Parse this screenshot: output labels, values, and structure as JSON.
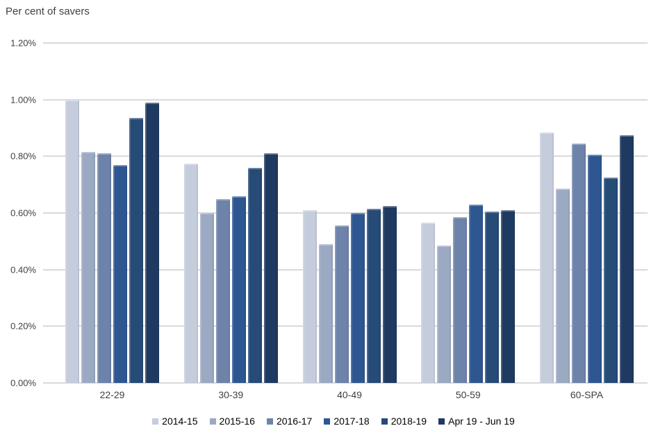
{
  "chart_data": {
    "type": "bar",
    "title": "Per cent of savers",
    "categories": [
      "22-29",
      "30-39",
      "40-49",
      "50-59",
      "60-SPA"
    ],
    "series": [
      {
        "name": "2014-15",
        "color": "#c5cddd",
        "values": [
          1.0,
          0.775,
          0.61,
          0.565,
          0.885
        ]
      },
      {
        "name": "2015-16",
        "color": "#9ca9c2",
        "values": [
          0.815,
          0.6,
          0.49,
          0.485,
          0.685
        ]
      },
      {
        "name": "2016-17",
        "color": "#6e83aa",
        "values": [
          0.81,
          0.65,
          0.555,
          0.585,
          0.845
        ]
      },
      {
        "name": "2017-18",
        "color": "#2e5791",
        "values": [
          0.77,
          0.66,
          0.6,
          0.63,
          0.805
        ]
      },
      {
        "name": "2018-19",
        "color": "#264b77",
        "values": [
          0.935,
          0.76,
          0.615,
          0.605,
          0.725
        ]
      },
      {
        "name": "Apr 19 - Jun 19",
        "color": "#1f3a60",
        "values": [
          0.99,
          0.81,
          0.625,
          0.61,
          0.875
        ]
      }
    ],
    "ylabel": "Per cent of savers",
    "ylim": [
      0,
      1.2
    ],
    "ytick_interval": 0.2,
    "ytick_labels": [
      "0.00%",
      "0.20%",
      "0.40%",
      "0.60%",
      "0.80%",
      "1.00%",
      "1.20%"
    ],
    "grid": true,
    "grid_color": "#d9d9d9",
    "legend_position": "bottom",
    "text_color": "#3f3f3f"
  }
}
